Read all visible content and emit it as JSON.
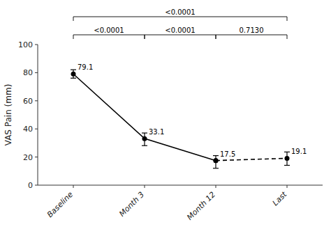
{
  "chart_data": {
    "type": "line",
    "categories": [
      "Baseline",
      "Month 3",
      "Month 12",
      "Last"
    ],
    "series": [
      {
        "values": [
          79.1,
          33.1,
          17.5,
          null
        ],
        "errors_up": [
          3.0,
          4.0,
          3.5,
          null
        ],
        "errors_down": [
          3.0,
          5.0,
          5.5,
          null
        ],
        "color": "#000000",
        "line_style": "solid",
        "marker": "circle"
      },
      {
        "values": [
          null,
          null,
          17.5,
          19.1
        ],
        "errors_up": [
          null,
          null,
          null,
          4.5
        ],
        "errors_down": [
          null,
          null,
          null,
          5.0
        ],
        "color": "#000000",
        "line_style": "dashed",
        "marker": "circle"
      }
    ],
    "ylabel": "VAS Pain (mm)",
    "ylim": [
      0,
      100
    ],
    "yticks": [
      0,
      20,
      40,
      60,
      80,
      100
    ],
    "grid": false,
    "data_labels": true,
    "brackets": [
      {
        "from": "Baseline",
        "to": "Last",
        "label": "<0.0001"
      },
      {
        "from": "Baseline",
        "to": "Month 3",
        "label": "<0.0001"
      },
      {
        "from": "Month 3",
        "to": "Month 12",
        "label": "<0.0001"
      },
      {
        "from": "Month 12",
        "to": "Last",
        "label": "0.7130"
      }
    ]
  }
}
